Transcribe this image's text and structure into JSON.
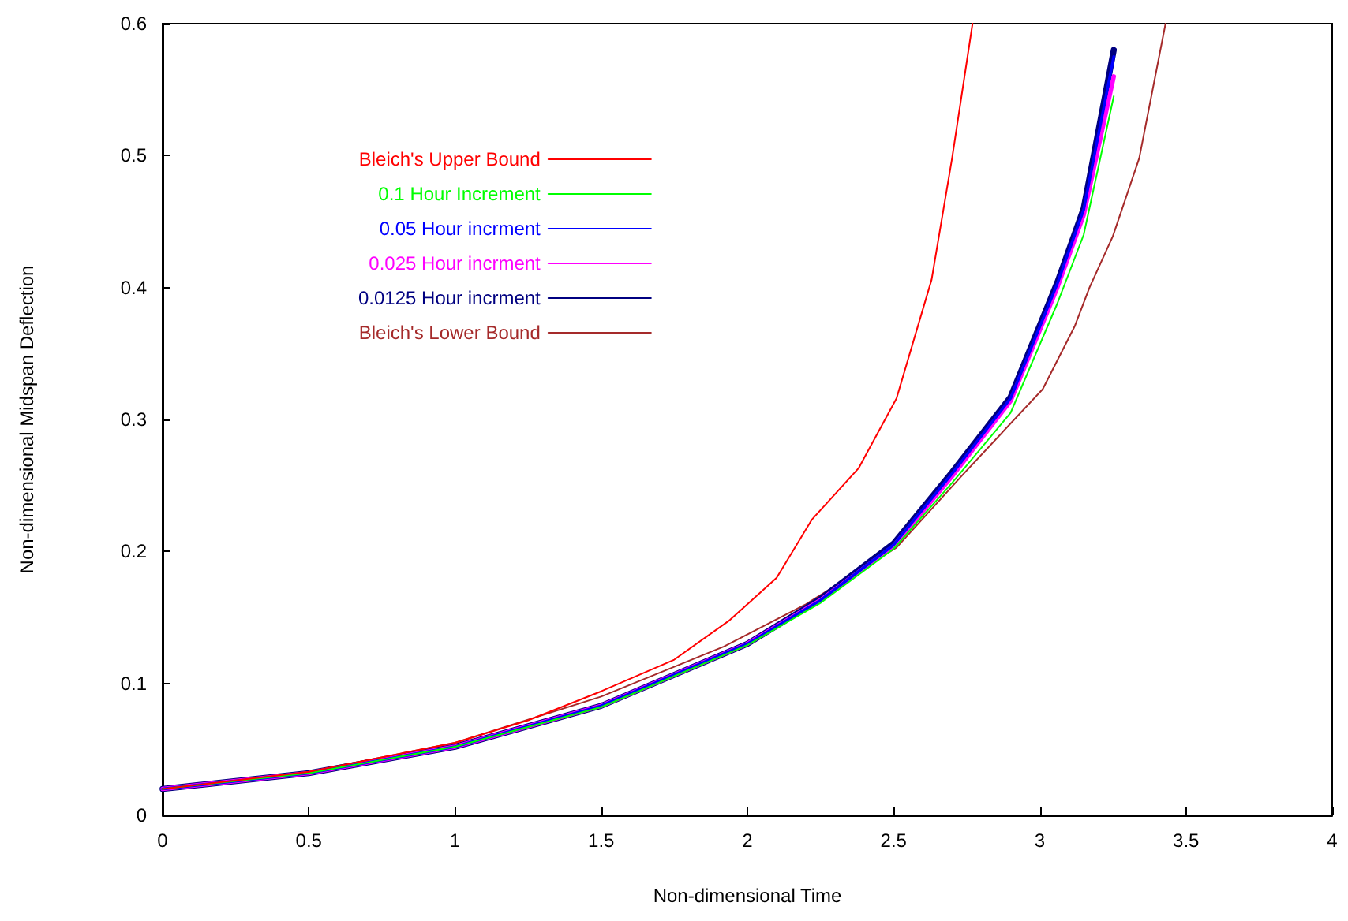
{
  "chart_data": {
    "type": "line",
    "xlabel": "Non-dimensional Time",
    "ylabel": "Non-dimensional Midspan Deflection",
    "xlim": [
      0,
      4
    ],
    "xticks": [
      0,
      0.5,
      1,
      1.5,
      2,
      2.5,
      3,
      3.5,
      4
    ],
    "ylim": [
      0,
      0.6
    ],
    "yticks": [
      0,
      0.1,
      0.2,
      0.3,
      0.4,
      0.5,
      0.6
    ],
    "grid": false,
    "legend": "top left",
    "marker": "none",
    "line_style": "solid",
    "series": [
      {
        "name": "Bleich's Upper Bound",
        "color": "#ff0000",
        "x": [
          0,
          0.5,
          1,
          1.25,
          1.5,
          1.75,
          1.94,
          2.1,
          2.22,
          2.38,
          2.51,
          2.63,
          2.7,
          2.77
        ],
        "values": [
          0.02,
          0.033,
          0.055,
          0.072,
          0.094,
          0.118,
          0.148,
          0.18,
          0.224,
          0.263,
          0.316,
          0.406,
          0.498,
          0.6
        ]
      },
      {
        "name": "0.1 Hour Increment",
        "color": "#00ff00",
        "x": [
          0,
          0.5,
          1,
          1.5,
          2,
          2.25,
          2.5,
          2.7,
          2.9,
          3.06,
          3.15,
          3.253
        ],
        "values": [
          0.02,
          0.032,
          0.052,
          0.082,
          0.129,
          0.161,
          0.202,
          0.252,
          0.305,
          0.388,
          0.44,
          0.545
        ]
      },
      {
        "name": "0.05 Hour incrment",
        "color": "#0000ff",
        "x": [
          0,
          0.5,
          1,
          1.5,
          2,
          2.25,
          2.5,
          2.7,
          2.9,
          3.06,
          3.15,
          3.253
        ],
        "values": [
          0.02,
          0.032,
          0.052,
          0.083,
          0.13,
          0.163,
          0.205,
          0.259,
          0.316,
          0.403,
          0.459,
          0.575
        ]
      },
      {
        "name": "0.025 Hour incrment",
        "color": "#ff00ff",
        "x": [
          0,
          0.5,
          1,
          1.5,
          2,
          2.25,
          2.5,
          2.7,
          2.9,
          3.06,
          3.15,
          3.253
        ],
        "values": [
          0.02,
          0.032,
          0.052,
          0.083,
          0.13,
          0.163,
          0.204,
          0.257,
          0.314,
          0.4,
          0.455,
          0.56
        ]
      },
      {
        "name": "0.0125 Hour incrment",
        "color": "#000080",
        "x": [
          0,
          0.5,
          1,
          1.5,
          2,
          2.25,
          2.5,
          2.7,
          2.9,
          3.06,
          3.15,
          3.253
        ],
        "values": [
          0.02,
          0.032,
          0.052,
          0.083,
          0.13,
          0.164,
          0.206,
          0.26,
          0.317,
          0.404,
          0.46,
          0.58
        ]
      },
      {
        "name": "Bleich's Lower Bound",
        "color": "#a52a2a",
        "x": [
          0,
          0.5,
          1,
          1.5,
          1.92,
          2.2,
          2.51,
          2.74,
          3.01,
          3.12,
          3.17,
          3.25,
          3.34,
          3.43
        ],
        "values": [
          0.02,
          0.033,
          0.055,
          0.09,
          0.128,
          0.16,
          0.203,
          0.259,
          0.323,
          0.371,
          0.4,
          0.439,
          0.498,
          0.6
        ]
      }
    ]
  }
}
